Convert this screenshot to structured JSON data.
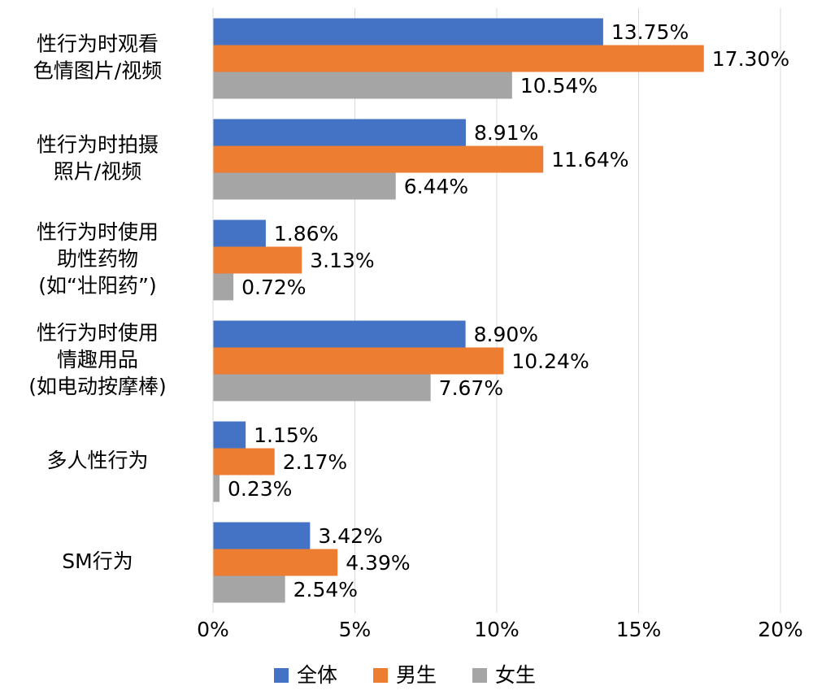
{
  "chart_data": {
    "type": "barh",
    "categories": [
      [
        "性行为时观看",
        "色情图片/视频"
      ],
      [
        "性行为时拍摄",
        "照片/视频"
      ],
      [
        "性行为时使用",
        "助性药物",
        "(如“壮阳药”)"
      ],
      [
        "性行为时使用",
        "情趣用品",
        "(如电动按摩棒)"
      ],
      [
        "多人性行为"
      ],
      [
        "SM行为"
      ]
    ],
    "series": [
      {
        "name": "全体",
        "color": "#4472c4",
        "values": [
          13.75,
          8.91,
          1.86,
          8.9,
          1.15,
          3.42
        ],
        "value_labels": [
          "13.75%",
          "8.91%",
          "1.86%",
          "8.90%",
          "1.15%",
          "3.42%"
        ]
      },
      {
        "name": "男生",
        "color": "#ed7d31",
        "values": [
          17.3,
          11.64,
          3.13,
          10.24,
          2.17,
          4.39
        ],
        "value_labels": [
          "17.30%",
          "11.64%",
          "3.13%",
          "10.24%",
          "2.17%",
          "4.39%"
        ]
      },
      {
        "name": "女生",
        "color": "#a5a5a5",
        "values": [
          10.54,
          6.44,
          0.72,
          7.67,
          0.23,
          2.54
        ],
        "value_labels": [
          "10.54%",
          "6.44%",
          "0.72%",
          "7.67%",
          "0.23%",
          "2.54%"
        ]
      }
    ],
    "xlim": [
      0,
      20
    ],
    "xticks": [
      {
        "value": 0,
        "label": "0%"
      },
      {
        "value": 5,
        "label": "5%"
      },
      {
        "value": 10,
        "label": "10%"
      },
      {
        "value": 15,
        "label": "15%"
      },
      {
        "value": 20,
        "label": "20%"
      }
    ],
    "grid": true,
    "legend": "bottom"
  }
}
